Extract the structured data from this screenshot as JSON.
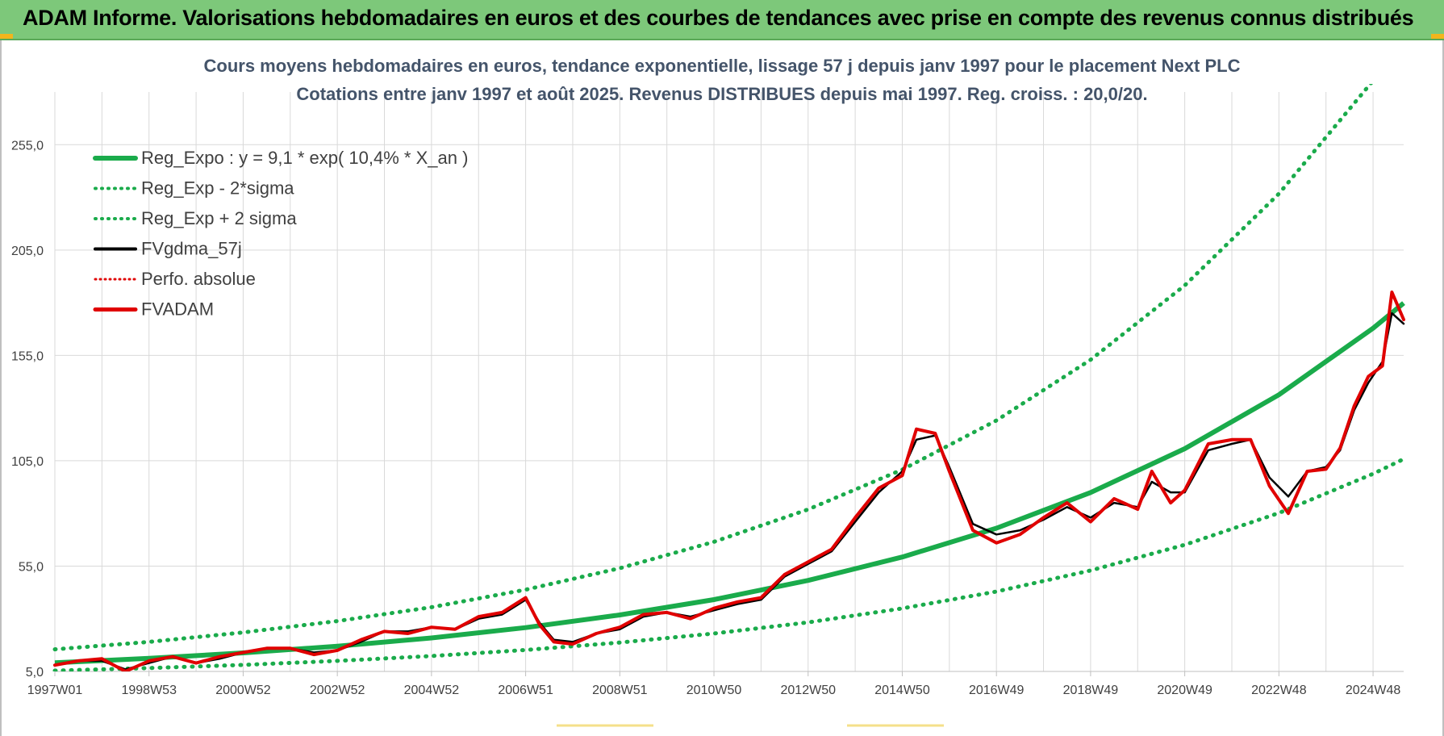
{
  "banner": {
    "title": "ADAM Informe. Valorisations hebdomadaires en euros et des courbes de tendances avec prise en compte des revenus connus distribués"
  },
  "colors": {
    "banner_bg": "#7dc87a",
    "reg_green": "#1aab4b",
    "price_red": "#e00000",
    "ma_black": "#000000",
    "grid": "#d9d9d9"
  },
  "chart_data": {
    "type": "line",
    "title_line1": "Cours moyens hebdomadaires en euros, tendance exponentielle, lissage 57 j depuis janv 1997 pour le placement Next PLC",
    "title_line2": "Cotations entre janv 1997 et août 2025. Revenus DISTRIBUES depuis mai 1997. Reg. croiss. : 20,0/20.",
    "xlabel": "",
    "ylabel": "",
    "x_tick_labels": [
      "1997W01",
      "1998W53",
      "2000W52",
      "2002W52",
      "2004W52",
      "2006W51",
      "2008W51",
      "2010W50",
      "2012W50",
      "2014W50",
      "2016W49",
      "2018W49",
      "2020W49",
      "2022W48",
      "2024W48"
    ],
    "x_tick_years": [
      1997.0,
      1999.0,
      2001.0,
      2003.0,
      2005.0,
      2007.0,
      2009.0,
      2011.0,
      2013.0,
      2015.0,
      2017.0,
      2019.0,
      2021.0,
      2023.0,
      2025.0
    ],
    "x_range": [
      1997.0,
      2025.65
    ],
    "y_ticks": [
      "5,0",
      "55,0",
      "105,0",
      "155,0",
      "205,0",
      "255,0"
    ],
    "y_tick_values": [
      5,
      55,
      105,
      155,
      205,
      255
    ],
    "ylim": [
      5,
      280
    ],
    "grid": true,
    "legend_position": "top-left",
    "legend": [
      {
        "label": "Reg_Expo : y = 9,1 * exp( 10,4% *  X_an )",
        "style": "solid-green-thick"
      },
      {
        "label": "Reg_Exp - 2*sigma",
        "style": "dotted-green"
      },
      {
        "label": "Reg_Exp + 2 sigma",
        "style": "dotted-green"
      },
      {
        "label": "FVgdma_57j",
        "style": "solid-black"
      },
      {
        "label": "Perfo. absolue",
        "style": "dotted-red"
      },
      {
        "label": "FVADAM",
        "style": "solid-red-thick"
      }
    ],
    "regression": {
      "a": 9.1,
      "rate": 0.104
    },
    "series": [
      {
        "name": "Reg_Expo : y = 9,1 * exp( 10,4% *  X_an )",
        "x": [
          1997,
          1999,
          2001,
          2003,
          2005,
          2007,
          2009,
          2011,
          2013,
          2015,
          2017,
          2019,
          2021,
          2023,
          2025,
          2025.65
        ],
        "values": [
          9.1,
          11.2,
          13.8,
          17.0,
          20.9,
          25.8,
          31.8,
          39.1,
          48.2,
          59.3,
          73.0,
          89.9,
          110.7,
          136.3,
          167.9,
          179.8
        ]
      },
      {
        "name": "Reg_Exp - 2*sigma",
        "x": [
          1997,
          1999,
          2001,
          2003,
          2005,
          2007,
          2009,
          2011,
          2013,
          2015,
          2017,
          2019,
          2021,
          2023,
          2025,
          2025.65
        ],
        "values": [
          5.4,
          6.6,
          8.1,
          10.0,
          12.3,
          15.2,
          18.7,
          23.0,
          28.3,
          34.9,
          42.9,
          52.9,
          65.1,
          80.2,
          98.8,
          105.8
        ]
      },
      {
        "name": "Reg_Exp + 2 sigma",
        "x": [
          1997,
          1999,
          2001,
          2003,
          2005,
          2007,
          2009,
          2011,
          2013,
          2015,
          2017,
          2019,
          2021,
          2023,
          2025,
          2025.65
        ],
        "values": [
          15.5,
          19.0,
          23.5,
          28.9,
          35.5,
          43.8,
          54.0,
          66.5,
          81.9,
          100.8,
          124.1,
          152.9,
          188.2,
          231.7,
          285.4,
          305.7
        ]
      },
      {
        "name": "FVgdma_57j",
        "x": [
          1997.0,
          1997.5,
          1998.0,
          1998.5,
          1999.0,
          1999.5,
          2000.0,
          2000.5,
          2001.0,
          2001.5,
          2002.0,
          2002.5,
          2003.0,
          2003.5,
          2004.0,
          2004.5,
          2005.0,
          2005.5,
          2006.0,
          2006.5,
          2007.0,
          2007.3,
          2007.6,
          2008.0,
          2008.5,
          2009.0,
          2009.5,
          2010.0,
          2010.5,
          2011.0,
          2011.5,
          2012.0,
          2012.5,
          2013.0,
          2013.5,
          2014.0,
          2014.5,
          2015.0,
          2015.3,
          2015.7,
          2016.0,
          2016.5,
          2017.0,
          2017.5,
          2018.0,
          2018.5,
          2019.0,
          2019.5,
          2020.0,
          2020.3,
          2020.7,
          2021.0,
          2021.5,
          2022.0,
          2022.4,
          2022.8,
          2023.2,
          2023.6,
          2024.0,
          2024.3,
          2024.6,
          2024.9,
          2025.2,
          2025.4,
          2025.65
        ],
        "values": [
          8,
          10,
          10,
          6,
          9,
          12,
          9,
          11,
          14,
          16,
          16,
          14,
          15,
          19,
          24,
          24,
          26,
          25,
          30,
          32,
          39,
          28,
          20,
          19,
          23,
          25,
          31,
          33,
          31,
          34,
          37,
          39,
          50,
          56,
          62,
          76,
          90,
          100,
          115,
          117,
          102,
          75,
          70,
          72,
          77,
          83,
          78,
          85,
          83,
          95,
          90,
          90,
          110,
          113,
          115,
          97,
          88,
          100,
          102,
          110,
          129,
          142,
          152,
          175,
          170
        ]
      },
      {
        "name": "FVADAM",
        "x": [
          1997.0,
          1997.5,
          1998.0,
          1998.5,
          1999.0,
          1999.5,
          2000.0,
          2000.5,
          2001.0,
          2001.5,
          2002.0,
          2002.5,
          2003.0,
          2003.5,
          2004.0,
          2004.5,
          2005.0,
          2005.5,
          2006.0,
          2006.5,
          2007.0,
          2007.3,
          2007.6,
          2008.0,
          2008.5,
          2009.0,
          2009.5,
          2010.0,
          2010.5,
          2011.0,
          2011.5,
          2012.0,
          2012.5,
          2013.0,
          2013.5,
          2014.0,
          2014.5,
          2015.0,
          2015.3,
          2015.7,
          2016.0,
          2016.5,
          2017.0,
          2017.5,
          2018.0,
          2018.5,
          2019.0,
          2019.5,
          2020.0,
          2020.3,
          2020.7,
          2021.0,
          2021.5,
          2022.0,
          2022.4,
          2022.8,
          2023.2,
          2023.6,
          2024.0,
          2024.3,
          2024.6,
          2024.9,
          2025.2,
          2025.4,
          2025.65
        ],
        "values": [
          8,
          10,
          11,
          5,
          10,
          12,
          9,
          12,
          14,
          16,
          16,
          13,
          15,
          20,
          24,
          23,
          26,
          25,
          31,
          33,
          40,
          27,
          19,
          18,
          23,
          26,
          32,
          33,
          30,
          35,
          38,
          40,
          51,
          57,
          63,
          78,
          92,
          98,
          120,
          118,
          100,
          72,
          66,
          70,
          78,
          85,
          76,
          87,
          82,
          100,
          85,
          91,
          113,
          115,
          115,
          93,
          80,
          100,
          101,
          111,
          131,
          145,
          150,
          185,
          172
        ]
      }
    ]
  }
}
